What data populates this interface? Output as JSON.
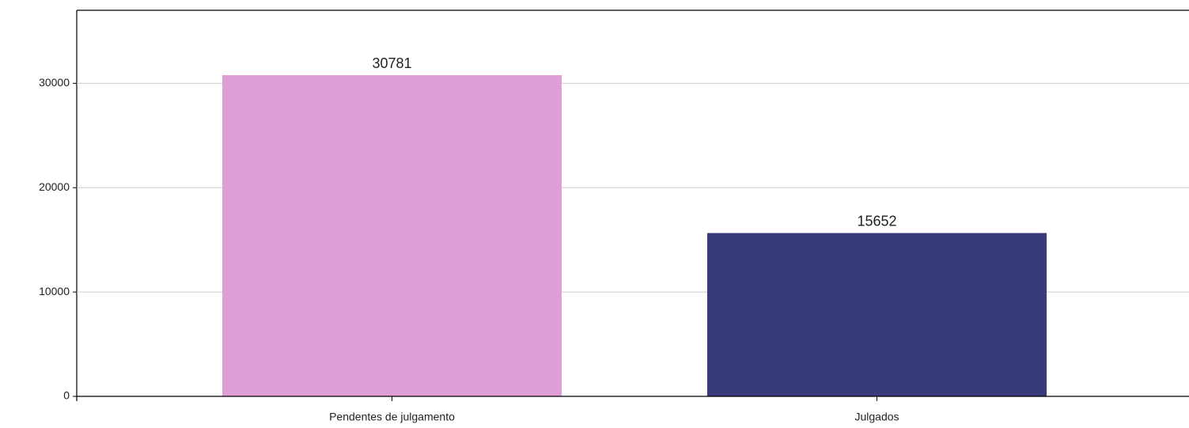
{
  "chart_data": {
    "type": "bar",
    "categories": [
      "Pendentes de julgamento",
      "Julgados"
    ],
    "values": [
      30781,
      15652
    ],
    "colors": [
      "#de9ed6",
      "#393b79"
    ],
    "ylim": [
      0,
      37000
    ],
    "yticks": [
      0,
      10000,
      20000,
      30000
    ],
    "grid": true
  }
}
